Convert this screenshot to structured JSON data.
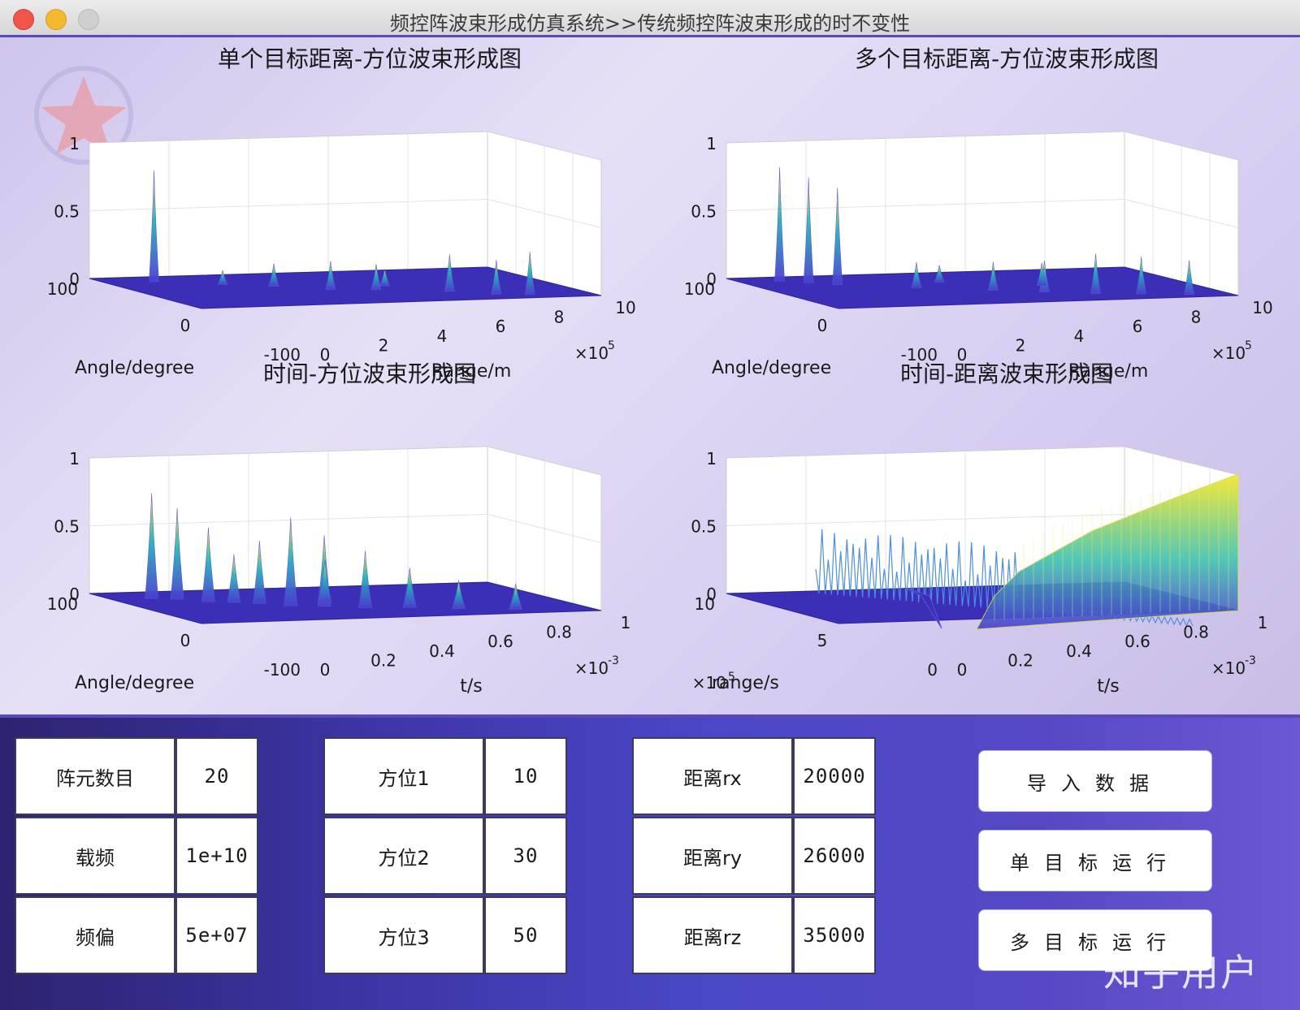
{
  "window": {
    "title": "频控阵波束形成仿真系统>>传统频控阵波束形成的时不变性"
  },
  "plots": [
    {
      "title": "单个目标距离-方位波束形成图",
      "zticks": [
        "1",
        "0.5",
        "0"
      ],
      "left_axis_ticks": [
        "100",
        "0",
        "-100"
      ],
      "left_axis_label": "Angle/degree",
      "bottom_axis_ticks": [
        "0",
        "2",
        "4",
        "6",
        "8",
        "10"
      ],
      "bottom_axis_label": "Range/m",
      "exponent": "×10",
      "exponent_power": "5"
    },
    {
      "title": "多个目标距离-方位波束形成图",
      "zticks": [
        "1",
        "0.5",
        "0"
      ],
      "left_axis_ticks": [
        "100",
        "0",
        "-100"
      ],
      "left_axis_label": "Angle/degree",
      "bottom_axis_ticks": [
        "0",
        "2",
        "4",
        "6",
        "8",
        "10"
      ],
      "bottom_axis_label": "Range/m",
      "exponent": "×10",
      "exponent_power": "5"
    },
    {
      "title": "时间-方位波束形成图",
      "zticks": [
        "1",
        "0.5",
        "0"
      ],
      "left_axis_ticks": [
        "100",
        "0",
        "-100"
      ],
      "left_axis_label": "Angle/degree",
      "bottom_axis_ticks": [
        "0",
        "0.2",
        "0.4",
        "0.6",
        "0.8",
        "1"
      ],
      "bottom_axis_label": "t/s",
      "exponent": "×10",
      "exponent_power": "-3"
    },
    {
      "title": "时间-距离波束形成图",
      "zticks": [
        "1",
        "0.5",
        "0"
      ],
      "left_axis_ticks": [
        "10",
        "5",
        "0"
      ],
      "left_axis_label": "range/s",
      "left_exponent": "×10",
      "left_exponent_power": "5",
      "bottom_axis_ticks": [
        "0",
        "0.2",
        "0.4",
        "0.6",
        "0.8",
        "1"
      ],
      "bottom_axis_label": "t/s",
      "exponent": "×10",
      "exponent_power": "-3"
    }
  ],
  "params": {
    "array_count_label": "阵元数目",
    "array_count_value": "20",
    "carrier_label": "载频",
    "carrier_value": "1e+10",
    "freq_offset_label": "频偏",
    "freq_offset_value": "5e+07",
    "azimuth1_label": "方位1",
    "azimuth1_value": "10",
    "azimuth2_label": "方位2",
    "azimuth2_value": "30",
    "azimuth3_label": "方位3",
    "azimuth3_value": "50",
    "range_rx_label": "距离rx",
    "range_rx_value": "20000",
    "range_ry_label": "距离ry",
    "range_ry_value": "26000",
    "range_rz_label": "距离rz",
    "range_rz_value": "35000"
  },
  "actions": {
    "import_label": "导入数据",
    "single_label": "单目标运行",
    "multi_label": "多目标运行"
  },
  "watermark": "知乎用户",
  "colors": {
    "surface_floor": "#3b2fb8",
    "peak_low": "#4a3fd0",
    "peak_mid": "#25b3b8",
    "peak_high": "#f5e623",
    "title_bar_border": "#5a48b8"
  }
}
